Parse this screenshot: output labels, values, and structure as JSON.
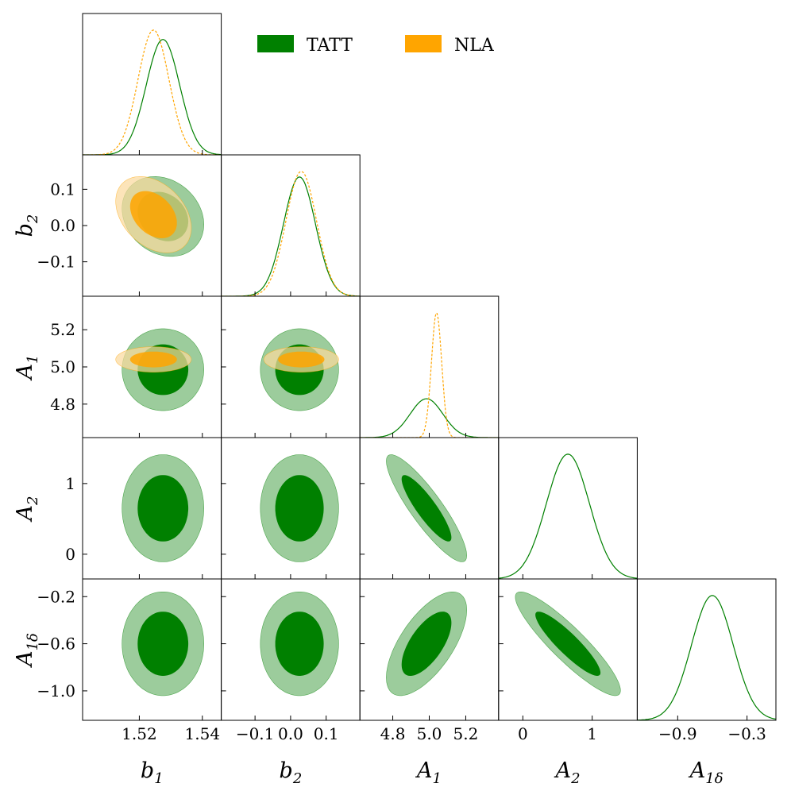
{
  "chart_data": {
    "type": "corner",
    "colors": {
      "TATT": "#008000",
      "NLA": "#ffa500",
      "TATT_outer": "#9ccc9c",
      "NLA_outer": "#fbd99e"
    },
    "legend": [
      {
        "name": "TATT",
        "color": "#008000"
      },
      {
        "name": "NLA",
        "color": "#ffa500"
      }
    ],
    "parameters": [
      {
        "key": "b1",
        "label": "b",
        "sub": "1",
        "range": [
          1.502,
          1.546
        ],
        "ticks": [
          1.52,
          1.54
        ],
        "tick_labels": [
          "1.52",
          "1.54"
        ]
      },
      {
        "key": "b2",
        "label": "b",
        "sub": "2",
        "range": [
          -0.195,
          0.195
        ],
        "ticks": [
          -0.1,
          0.0,
          0.1
        ],
        "tick_labels": [
          "−0.1",
          "0.0",
          "0.1"
        ]
      },
      {
        "key": "A1",
        "label": "A",
        "sub": "1",
        "range": [
          4.62,
          5.38
        ],
        "ticks": [
          4.8,
          5.0,
          5.2
        ],
        "tick_labels": [
          "4.8",
          "5.0",
          "5.2"
        ]
      },
      {
        "key": "A2",
        "label": "A",
        "sub": "2",
        "range": [
          -0.35,
          1.65
        ],
        "ticks": [
          0,
          1
        ],
        "tick_labels": [
          "0",
          "1"
        ]
      },
      {
        "key": "A1d",
        "label": "A",
        "sub": "1δ",
        "range": [
          -1.25,
          -0.05
        ],
        "ticks": [
          -1.0,
          -0.6,
          -0.2
        ],
        "tick_labels": [
          "−1.0",
          "−0.6",
          "−0.2"
        ],
        "bottom_ticks": [
          -0.9,
          -0.3
        ],
        "bottom_tick_labels": [
          "−0.9",
          "−0.3"
        ]
      }
    ],
    "posteriors": {
      "TATT": {
        "mean": {
          "b1": 1.5275,
          "b2": 0.025,
          "A1": 4.985,
          "A2": 0.65,
          "A1d": -0.6
        },
        "sigma": {
          "b1": 0.0053,
          "b2": 0.045,
          "A1": 0.09,
          "A2": 0.31,
          "A1d": 0.18
        },
        "corr": [
          {
            "a": "A1",
            "b": "A2",
            "rho": -0.88
          },
          {
            "a": "A1",
            "b": "A1d",
            "rho": 0.65
          },
          {
            "a": "A2",
            "b": "A1d",
            "rho": -0.9
          },
          {
            "a": "b1",
            "b": "b2",
            "rho": -0.2
          }
        ]
      },
      "NLA": {
        "mean": {
          "b1": 1.5245,
          "b2": 0.03,
          "A1": 5.04,
          "A2": 0.0,
          "A1d": 0.0
        },
        "sigma": {
          "b1": 0.0049,
          "b2": 0.043,
          "A1": 0.028,
          "A2": 0.0,
          "A1d": 0.0
        },
        "corr": [
          {
            "a": "b1",
            "b": "b2",
            "rho": -0.35
          }
        ]
      }
    },
    "contour_levels": [
      "68%",
      "95%"
    ]
  }
}
